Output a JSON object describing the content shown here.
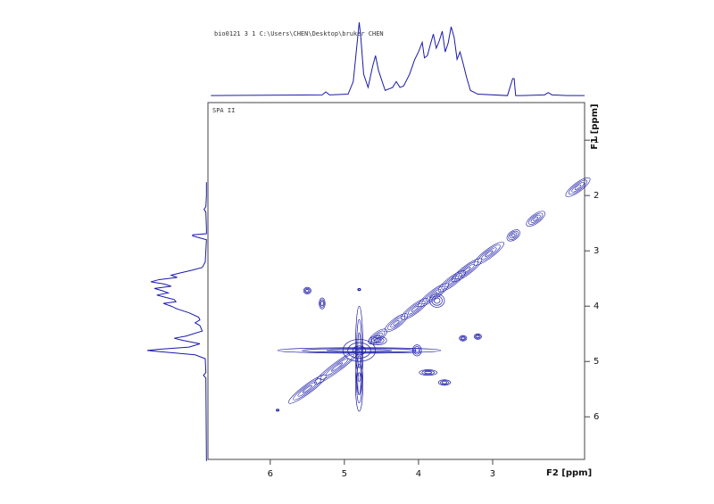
{
  "chart_data": {
    "type": "contour",
    "title": "bio0121  3  1  C:\\Users\\CHEN\\Desktop\\bruker  CHEN",
    "subtitle": "SPA II",
    "xlabel": "F2 [ppm]",
    "ylabel": "F1 [ppm]",
    "xlim": [
      6.84,
      1.76
    ],
    "ylim": [
      0.32,
      6.77
    ],
    "xticks": [
      6,
      5,
      4,
      3
    ],
    "yticks": [
      1,
      2,
      3,
      4,
      5,
      6
    ],
    "color": "#1a1aa8",
    "projection": {
      "x": [
        6.8,
        5.3,
        5.25,
        5.2,
        4.95,
        4.88,
        4.82,
        4.8,
        4.78,
        4.74,
        4.68,
        4.62,
        4.58,
        4.54,
        4.45,
        4.35,
        4.3,
        4.25,
        4.2,
        4.12,
        4.05,
        4.0,
        3.95,
        3.92,
        3.88,
        3.84,
        3.8,
        3.76,
        3.72,
        3.68,
        3.64,
        3.6,
        3.56,
        3.52,
        3.48,
        3.44,
        3.4,
        3.35,
        3.3,
        3.2,
        2.8,
        2.73,
        2.71,
        2.69,
        2.6,
        2.3,
        2.25,
        2.2,
        2.0,
        1.76
      ],
      "values": [
        1,
        2,
        6,
        2,
        3,
        20,
        80,
        100,
        82,
        30,
        12,
        40,
        55,
        35,
        8,
        12,
        20,
        12,
        14,
        30,
        50,
        60,
        73,
        52,
        55,
        70,
        84,
        65,
        75,
        88,
        60,
        72,
        94,
        80,
        50,
        60,
        45,
        25,
        8,
        3,
        1,
        24,
        24,
        1,
        1,
        2,
        5,
        2,
        1,
        1
      ],
      "ylim": [
        0,
        100
      ]
    },
    "peaks": [
      [
        4.8,
        4.8,
        0.22,
        0.2
      ],
      [
        4.8,
        4.8,
        1.1,
        0.05
      ],
      [
        4.8,
        4.8,
        0.05,
        0.8
      ],
      [
        4.8,
        5.4,
        0.05,
        0.5
      ],
      [
        5.5,
        3.72,
        0.05,
        0.06
      ],
      [
        5.3,
        3.95,
        0.04,
        0.1
      ],
      [
        4.02,
        4.8,
        0.06,
        0.1
      ],
      [
        3.4,
        4.58,
        0.05,
        0.05
      ],
      [
        3.2,
        4.55,
        0.05,
        0.05
      ],
      [
        3.87,
        5.2,
        0.12,
        0.05
      ],
      [
        3.65,
        5.38,
        0.08,
        0.05
      ],
      [
        4.8,
        3.7,
        0.02,
        0.02
      ],
      [
        3.75,
        3.9,
        0.1,
        0.12
      ],
      [
        4.55,
        4.62,
        0.12,
        0.08
      ],
      [
        5.9,
        5.88,
        0.02,
        0.02
      ]
    ],
    "diagonal": [
      [
        1.85,
        0.16
      ],
      [
        2.42,
        0.12
      ],
      [
        2.72,
        0.08
      ],
      [
        3.05,
        0.2
      ],
      [
        3.35,
        0.2
      ],
      [
        3.55,
        0.18
      ],
      [
        3.8,
        0.2
      ],
      [
        4.05,
        0.18
      ],
      [
        4.3,
        0.15
      ],
      [
        4.55,
        0.12
      ],
      [
        5.1,
        0.3
      ],
      [
        5.5,
        0.25
      ]
    ]
  }
}
